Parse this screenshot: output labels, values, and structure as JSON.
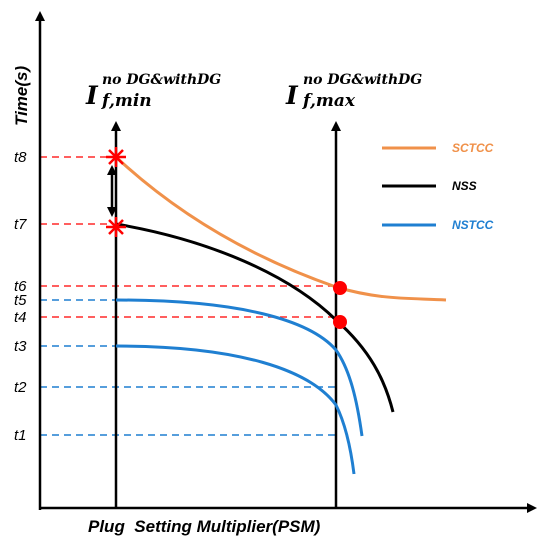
{
  "axes": {
    "y_title": "Time(s)",
    "x_title": "Plug  Setting Multiplier(PSM)"
  },
  "ticks": [
    "t8",
    "t7",
    "t6",
    "t5",
    "t4",
    "t3",
    "t2",
    "t1"
  ],
  "fault_min": {
    "base": "I",
    "sup": "no DG&withDG",
    "sub": "f,min"
  },
  "fault_max": {
    "base": "I",
    "sup": "no DG&withDG",
    "sub": "f,max"
  },
  "legend": [
    {
      "label": "SCTCC",
      "color": "#f0914a"
    },
    {
      "label": "NSS",
      "color": "#000000"
    },
    {
      "label": "NSTCC",
      "color": "#1f7fd1"
    }
  ],
  "colors": {
    "guide_red": "#ff2a2a",
    "guide_blue": "#1f7fd1",
    "marker": "#ff0000"
  }
}
